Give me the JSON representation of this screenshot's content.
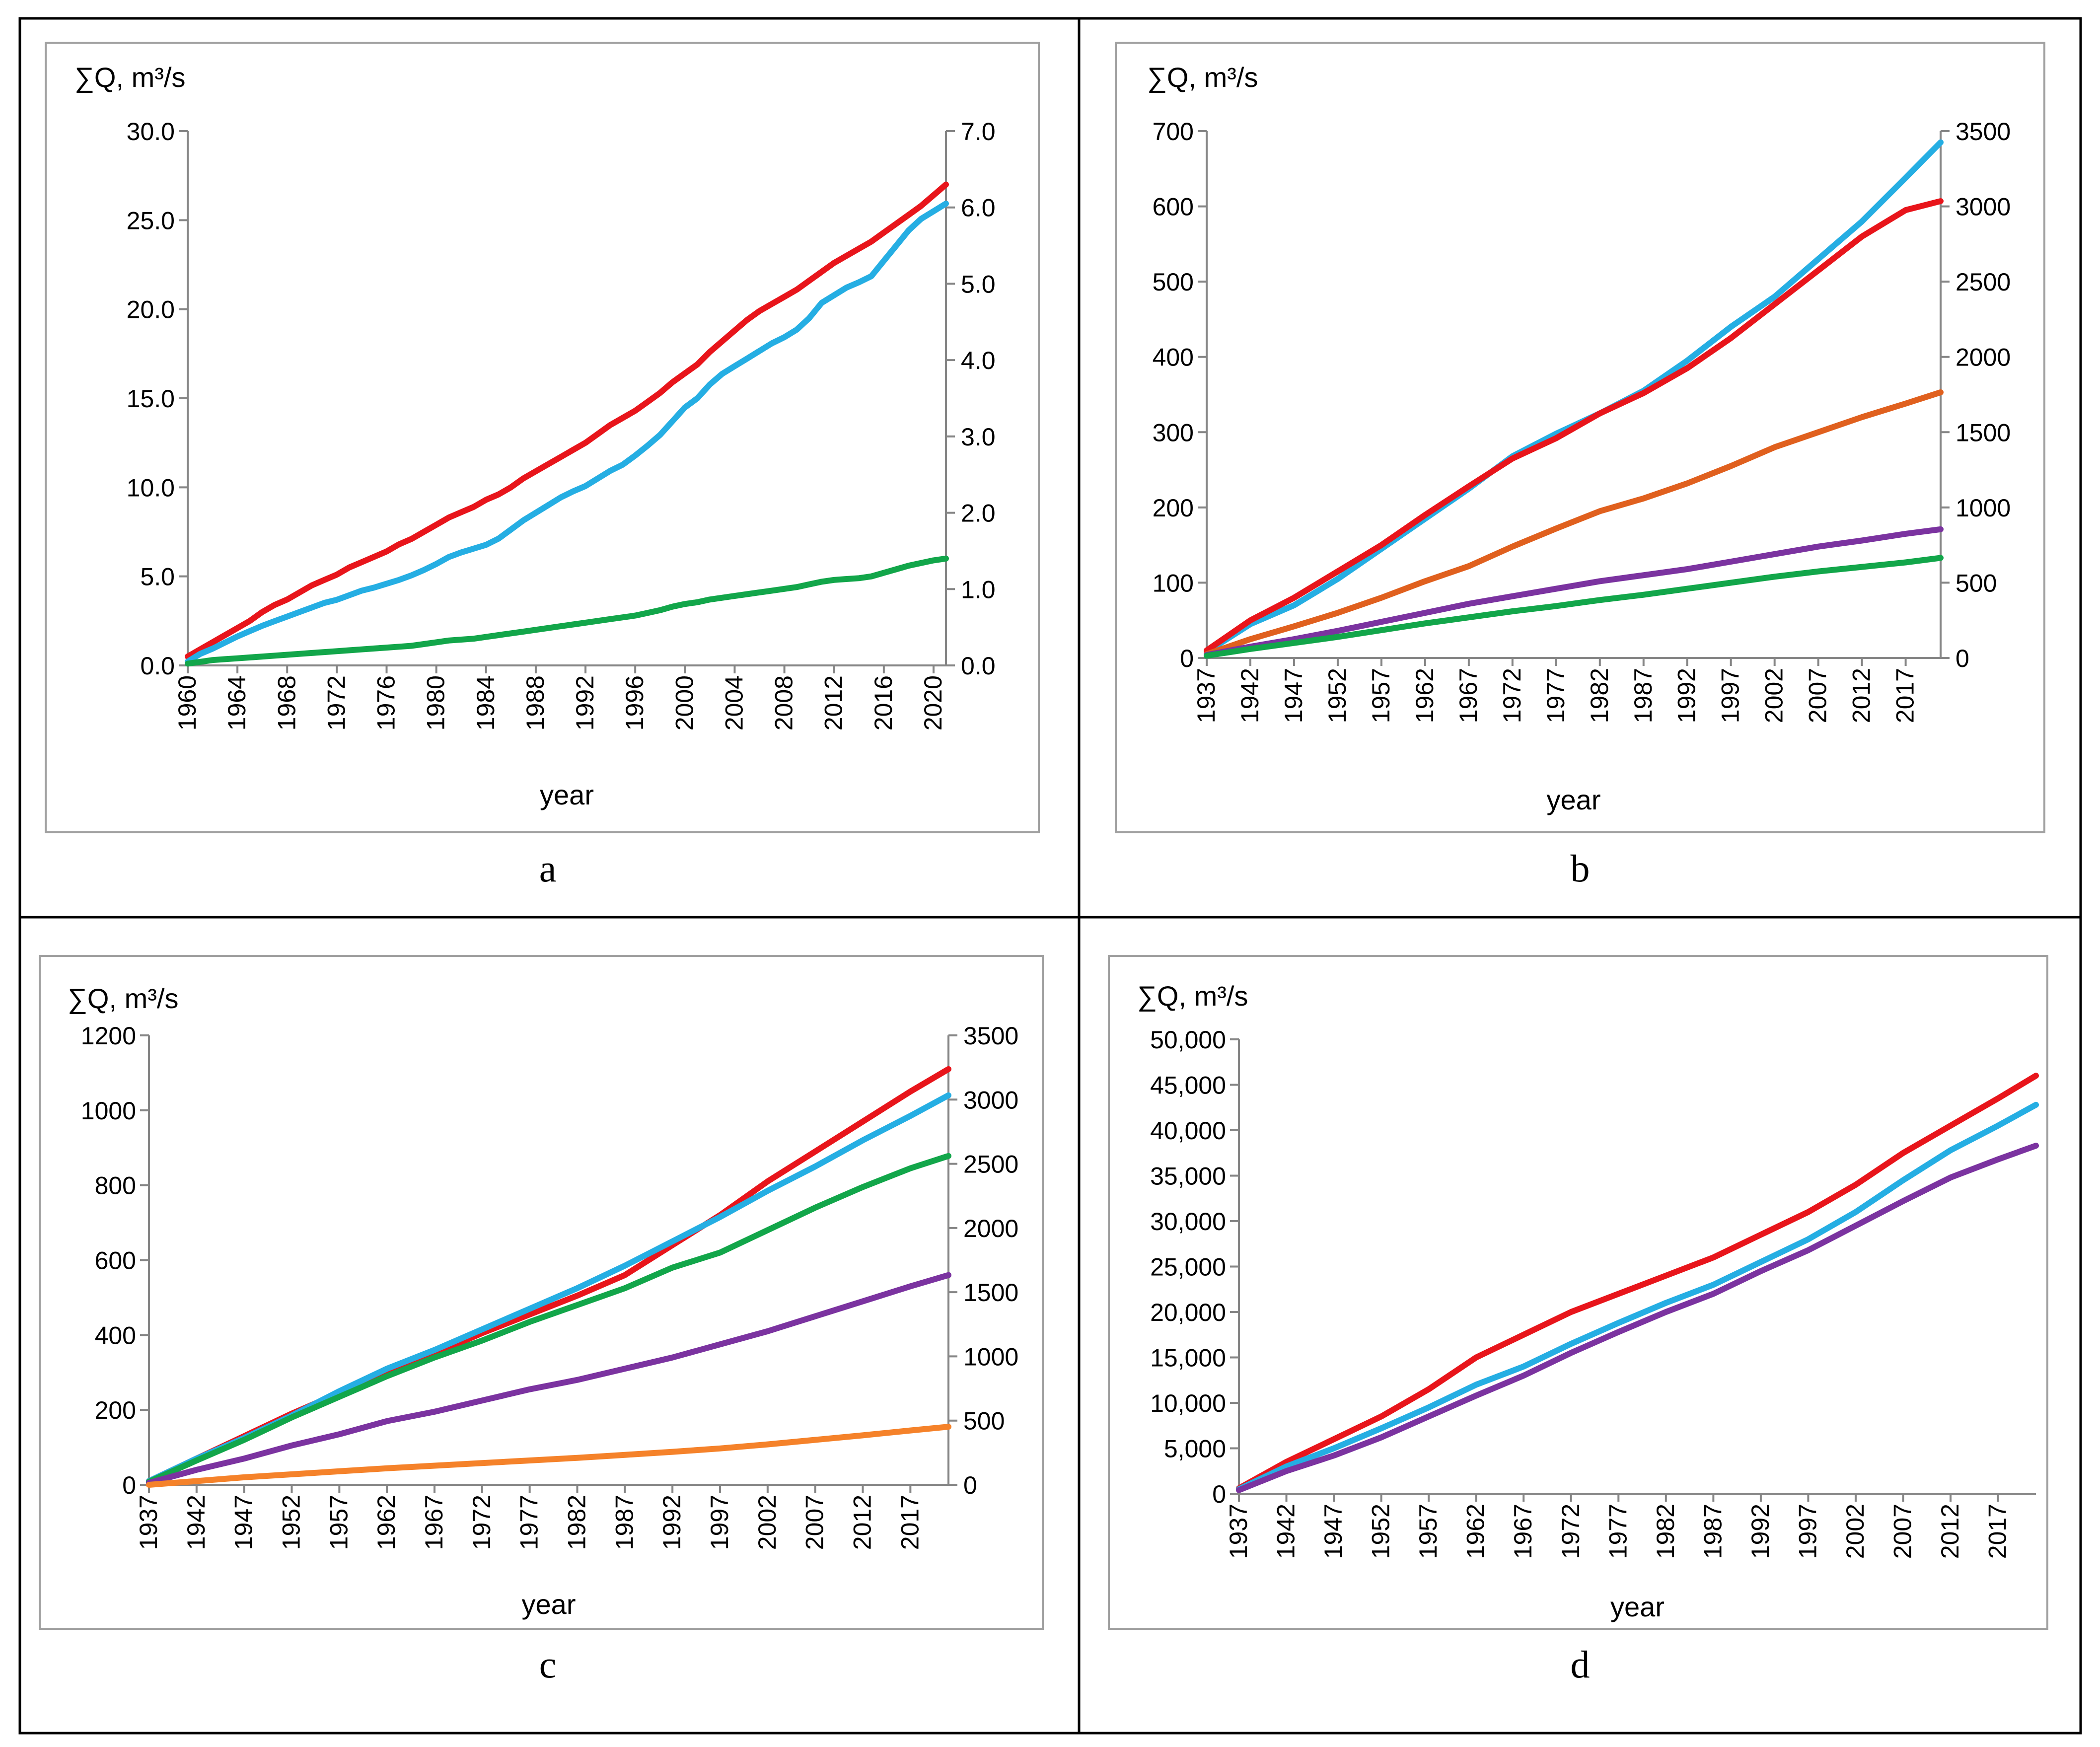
{
  "chart_data": [
    {
      "panel": "a",
      "type": "line",
      "ylabel": "∑Q, m³/s",
      "xlabel": "year",
      "x": [
        1960,
        1961,
        1962,
        1963,
        1964,
        1965,
        1966,
        1967,
        1968,
        1969,
        1970,
        1971,
        1972,
        1973,
        1974,
        1975,
        1976,
        1977,
        1978,
        1979,
        1980,
        1981,
        1982,
        1983,
        1984,
        1985,
        1986,
        1987,
        1988,
        1989,
        1990,
        1991,
        1992,
        1993,
        1994,
        1995,
        1996,
        1997,
        1998,
        1999,
        2000,
        2001,
        2002,
        2003,
        2004,
        2005,
        2006,
        2007,
        2008,
        2009,
        2010,
        2011,
        2012,
        2013,
        2014,
        2015,
        2016,
        2017,
        2018,
        2019,
        2020,
        2021
      ],
      "xticks": [
        "1960",
        "1964",
        "1968",
        "1972",
        "1976",
        "1980",
        "1984",
        "1988",
        "1992",
        "1996",
        "2000",
        "2004",
        "2008",
        "2012",
        "2016",
        "2020"
      ],
      "ylim_left": [
        0,
        30
      ],
      "yticks_left": [
        "0.0",
        "5.0",
        "10.0",
        "15.0",
        "20.0",
        "25.0",
        "30.0"
      ],
      "ylim_right": [
        0,
        7
      ],
      "yticks_right": [
        "0.0",
        "1.0",
        "2.0",
        "3.0",
        "4.0",
        "5.0",
        "6.0",
        "7.0"
      ],
      "series": [
        {
          "name": "red",
          "axis": "left",
          "color": "#e8151b",
          "values": [
            0.5,
            0.9,
            1.3,
            1.7,
            2.1,
            2.5,
            3.0,
            3.4,
            3.7,
            4.1,
            4.5,
            4.8,
            5.1,
            5.5,
            5.8,
            6.1,
            6.4,
            6.8,
            7.1,
            7.5,
            7.9,
            8.3,
            8.6,
            8.9,
            9.3,
            9.6,
            10.0,
            10.5,
            10.9,
            11.3,
            11.7,
            12.1,
            12.5,
            13.0,
            13.5,
            13.9,
            14.3,
            14.8,
            15.3,
            15.9,
            16.4,
            16.9,
            17.6,
            18.2,
            18.8,
            19.4,
            19.9,
            20.3,
            20.7,
            21.1,
            21.6,
            22.1,
            22.6,
            23.0,
            23.4,
            23.8,
            24.3,
            24.8,
            25.3,
            25.8,
            26.4,
            27.0
          ]
        },
        {
          "name": "light blue",
          "axis": "right",
          "color": "#25aee3",
          "values": [
            0.05,
            0.15,
            0.22,
            0.3,
            0.38,
            0.45,
            0.52,
            0.58,
            0.64,
            0.7,
            0.76,
            0.82,
            0.86,
            0.92,
            0.98,
            1.02,
            1.07,
            1.12,
            1.18,
            1.25,
            1.33,
            1.42,
            1.48,
            1.53,
            1.58,
            1.66,
            1.78,
            1.9,
            2.0,
            2.1,
            2.2,
            2.28,
            2.35,
            2.45,
            2.55,
            2.63,
            2.75,
            2.88,
            3.02,
            3.2,
            3.38,
            3.5,
            3.68,
            3.82,
            3.92,
            4.02,
            4.12,
            4.22,
            4.3,
            4.4,
            4.55,
            4.75,
            4.85,
            4.95,
            5.02,
            5.1,
            5.3,
            5.5,
            5.7,
            5.85,
            5.95,
            6.05
          ]
        },
        {
          "name": "green",
          "axis": "left",
          "color": "#12a64a",
          "values": [
            0.1,
            0.2,
            0.3,
            0.35,
            0.4,
            0.45,
            0.5,
            0.55,
            0.6,
            0.65,
            0.7,
            0.75,
            0.8,
            0.85,
            0.9,
            0.95,
            1.0,
            1.05,
            1.1,
            1.2,
            1.3,
            1.4,
            1.45,
            1.5,
            1.6,
            1.7,
            1.8,
            1.9,
            2.0,
            2.1,
            2.2,
            2.3,
            2.4,
            2.5,
            2.6,
            2.7,
            2.8,
            2.95,
            3.1,
            3.3,
            3.45,
            3.55,
            3.7,
            3.8,
            3.9,
            4.0,
            4.1,
            4.2,
            4.3,
            4.4,
            4.55,
            4.7,
            4.8,
            4.85,
            4.9,
            5.0,
            5.2,
            5.4,
            5.6,
            5.75,
            5.9,
            6.0
          ]
        }
      ]
    },
    {
      "panel": "b",
      "type": "line",
      "ylabel": "∑Q, m³/s",
      "xlabel": "year",
      "x": [
        1937,
        1942,
        1947,
        1952,
        1957,
        1962,
        1967,
        1972,
        1977,
        1982,
        1987,
        1992,
        1997,
        2002,
        2007,
        2012,
        2017,
        2021
      ],
      "xticks": [
        "1937",
        "1942",
        "1947",
        "1952",
        "1957",
        "1962",
        "1967",
        "1972",
        "1977",
        "1982",
        "1987",
        "1992",
        "1997",
        "2002",
        "2007",
        "2012",
        "2017"
      ],
      "ylim_left": [
        0,
        700
      ],
      "yticks_left": [
        "0",
        "100",
        "200",
        "300",
        "400",
        "500",
        "600",
        "700"
      ],
      "ylim_right": [
        0,
        3500
      ],
      "yticks_right": [
        "0",
        "500",
        "1000",
        "1500",
        "2000",
        "2500",
        "3000",
        "3500"
      ],
      "series": [
        {
          "name": "light blue",
          "axis": "left",
          "color": "#25aee3",
          "values": [
            8,
            45,
            70,
            105,
            145,
            185,
            225,
            268,
            298,
            325,
            355,
            395,
            440,
            480,
            530,
            580,
            638,
            685
          ]
        },
        {
          "name": "red",
          "axis": "left",
          "color": "#e8151b",
          "values": [
            10,
            50,
            80,
            115,
            150,
            190,
            228,
            265,
            292,
            325,
            352,
            385,
            425,
            470,
            515,
            560,
            595,
            607
          ]
        },
        {
          "name": "orange",
          "axis": "left",
          "color": "#e0601e",
          "values": [
            5,
            25,
            42,
            60,
            80,
            102,
            122,
            148,
            172,
            195,
            212,
            232,
            255,
            280,
            300,
            320,
            338,
            353
          ]
        },
        {
          "name": "purple",
          "axis": "left",
          "color": "#7b33a0",
          "values": [
            4,
            15,
            25,
            36,
            48,
            60,
            72,
            82,
            92,
            102,
            110,
            118,
            128,
            138,
            148,
            156,
            165,
            171
          ]
        },
        {
          "name": "green",
          "axis": "left",
          "color": "#12a64a",
          "values": [
            3,
            12,
            20,
            28,
            37,
            46,
            54,
            62,
            69,
            77,
            84,
            92,
            100,
            108,
            115,
            121,
            127,
            133
          ]
        }
      ]
    },
    {
      "panel": "c",
      "type": "line",
      "ylabel": "∑Q, m³/s",
      "xlabel": "year",
      "x": [
        1937,
        1942,
        1947,
        1952,
        1957,
        1962,
        1967,
        1972,
        1977,
        1982,
        1987,
        1992,
        1997,
        2002,
        2007,
        2012,
        2017,
        2021
      ],
      "xticks": [
        "1937",
        "1942",
        "1947",
        "1952",
        "1957",
        "1962",
        "1967",
        "1972",
        "1977",
        "1982",
        "1987",
        "1992",
        "1997",
        "2002",
        "2007",
        "2012",
        "2017"
      ],
      "ylim_left": [
        0,
        1200
      ],
      "yticks_left": [
        "0",
        "200",
        "400",
        "600",
        "800",
        "1000",
        "1200"
      ],
      "ylim_right": [
        0,
        3500
      ],
      "yticks_right": [
        "0",
        "500",
        "1000",
        "1500",
        "2000",
        "2500",
        "3000",
        "3500"
      ],
      "series": [
        {
          "name": "red",
          "axis": "left",
          "color": "#e8151b",
          "values": [
            10,
            70,
            130,
            190,
            245,
            300,
            350,
            405,
            455,
            505,
            560,
            640,
            720,
            810,
            890,
            970,
            1050,
            1110
          ]
        },
        {
          "name": "light blue",
          "axis": "left",
          "color": "#25aee3",
          "values": [
            10,
            70,
            125,
            185,
            250,
            310,
            360,
            415,
            470,
            525,
            585,
            650,
            715,
            785,
            850,
            920,
            985,
            1040
          ]
        },
        {
          "name": "green",
          "axis": "left",
          "color": "#12a64a",
          "values": [
            8,
            65,
            120,
            180,
            235,
            290,
            340,
            385,
            435,
            480,
            525,
            580,
            620,
            680,
            740,
            795,
            845,
            878
          ]
        },
        {
          "name": "purple",
          "axis": "left",
          "color": "#7b33a0",
          "values": [
            5,
            40,
            70,
            105,
            135,
            170,
            195,
            225,
            255,
            280,
            310,
            340,
            375,
            410,
            450,
            490,
            530,
            560
          ]
        },
        {
          "name": "orange",
          "axis": "left",
          "color": "#f5822a",
          "values": [
            0,
            10,
            20,
            28,
            36,
            44,
            51,
            58,
            65,
            72,
            80,
            88,
            97,
            108,
            120,
            132,
            145,
            155
          ]
        }
      ]
    },
    {
      "panel": "d",
      "type": "line",
      "ylabel": "∑Q, m³/s",
      "xlabel": "year",
      "x": [
        1937,
        1942,
        1947,
        1952,
        1957,
        1962,
        1967,
        1972,
        1977,
        1982,
        1987,
        1992,
        1997,
        2002,
        2007,
        2012,
        2017,
        2021
      ],
      "xticks": [
        "1937",
        "1942",
        "1947",
        "1952",
        "1957",
        "1962",
        "1967",
        "1972",
        "1977",
        "1982",
        "1987",
        "1992",
        "1997",
        "2002",
        "2007",
        "2012",
        "2017"
      ],
      "ylim_left": [
        0,
        50000
      ],
      "yticks_left": [
        "0",
        "5,000",
        "10,000",
        "15,000",
        "20,000",
        "25,000",
        "30,000",
        "35,000",
        "40,000",
        "45,000",
        "50,000"
      ],
      "series": [
        {
          "name": "red",
          "axis": "left",
          "color": "#e8151b",
          "values": [
            600,
            3500,
            6000,
            8500,
            11500,
            15000,
            17500,
            20000,
            22000,
            24000,
            26000,
            28500,
            31000,
            34000,
            37500,
            40500,
            43500,
            46000
          ]
        },
        {
          "name": "light blue",
          "axis": "left",
          "color": "#25aee3",
          "values": [
            500,
            3000,
            5000,
            7200,
            9500,
            12000,
            14000,
            16500,
            18800,
            21000,
            23000,
            25500,
            28000,
            31000,
            34500,
            37800,
            40500,
            42800
          ]
        },
        {
          "name": "purple",
          "axis": "left",
          "color": "#7b33a0",
          "values": [
            400,
            2500,
            4200,
            6200,
            8500,
            10800,
            13000,
            15500,
            17800,
            20000,
            22000,
            24500,
            26800,
            29500,
            32200,
            34800,
            36800,
            38300
          ]
        }
      ]
    }
  ],
  "panel_letters": {
    "a": "a",
    "b": "b",
    "c": "c",
    "d": "d"
  }
}
